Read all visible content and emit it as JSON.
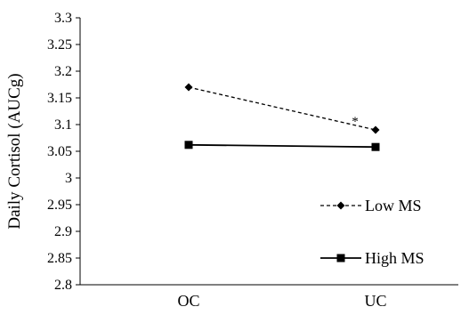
{
  "chart_data": {
    "type": "line",
    "categories": [
      "OC",
      "UC"
    ],
    "series": [
      {
        "name": "Low MS",
        "values": [
          3.17,
          3.09
        ],
        "line_style": "dashed",
        "marker": "diamond",
        "color": "#000000"
      },
      {
        "name": "High MS",
        "values": [
          3.062,
          3.058
        ],
        "line_style": "solid",
        "marker": "square",
        "color": "#000000"
      }
    ],
    "ylabel": "Daily Cortisol (AUCg)",
    "xlabel": "",
    "ylim": [
      2.8,
      3.3
    ],
    "yticks": [
      2.8,
      2.85,
      2.9,
      2.95,
      3,
      3.05,
      3.1,
      3.15,
      3.2,
      3.25,
      3.3
    ],
    "ytick_labels": [
      "2.8",
      "2.85",
      "2.9",
      "2.95",
      "3",
      "3.05",
      "3.1",
      "3.15",
      "3.2",
      "3.25",
      "3.3"
    ],
    "grid": false,
    "legend_position": "bottom-right",
    "annotations": [
      {
        "text": "*",
        "category": "UC",
        "value": 3.115
      }
    ]
  }
}
